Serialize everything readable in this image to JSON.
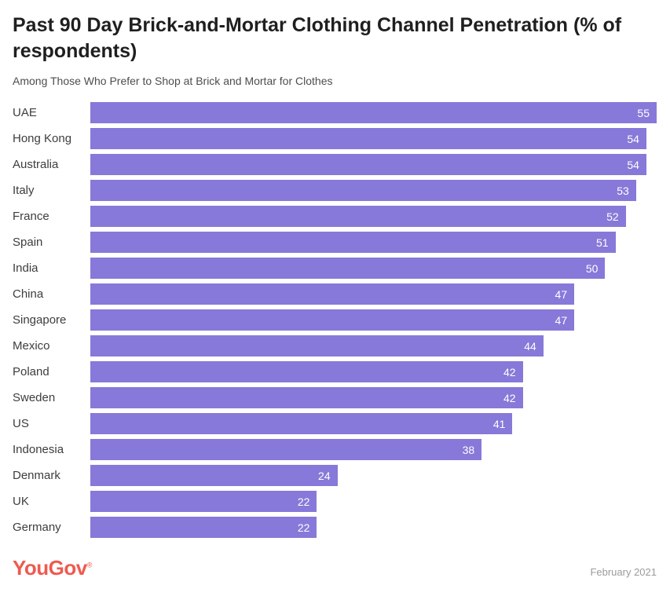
{
  "header": {
    "title": "Past 90 Day Brick-and-Mortar Clothing Channel Penetration (% of respondents)",
    "subtitle": "Among Those Who Prefer to Shop at Brick and Mortar for Clothes"
  },
  "chart_data": {
    "type": "bar",
    "orientation": "horizontal",
    "title": "Past 90 Day Brick-and-Mortar Clothing Channel Penetration (% of respondents)",
    "subtitle": "Among Those Who Prefer to Shop at Brick and Mortar for Clothes",
    "categories": [
      "UAE",
      "Hong Kong",
      "Australia",
      "Italy",
      "France",
      "Spain",
      "India",
      "China",
      "Singapore",
      "Mexico",
      "Poland",
      "Sweden",
      "US",
      "Indonesia",
      "Denmark",
      "UK",
      "Germany"
    ],
    "values": [
      55,
      54,
      54,
      53,
      52,
      51,
      50,
      47,
      47,
      44,
      42,
      42,
      41,
      38,
      24,
      22,
      22
    ],
    "xlabel": "",
    "ylabel": "",
    "xlim": [
      0,
      55
    ],
    "grid": false,
    "legend": false,
    "value_labels": "inside-end",
    "bar_color": "#8779d9",
    "value_label_color": "#ffffff"
  },
  "footer": {
    "logo_text": "YouGov",
    "logo_registered_mark": "®",
    "logo_color": "#ee5a4f",
    "date_label": "February 2021"
  }
}
